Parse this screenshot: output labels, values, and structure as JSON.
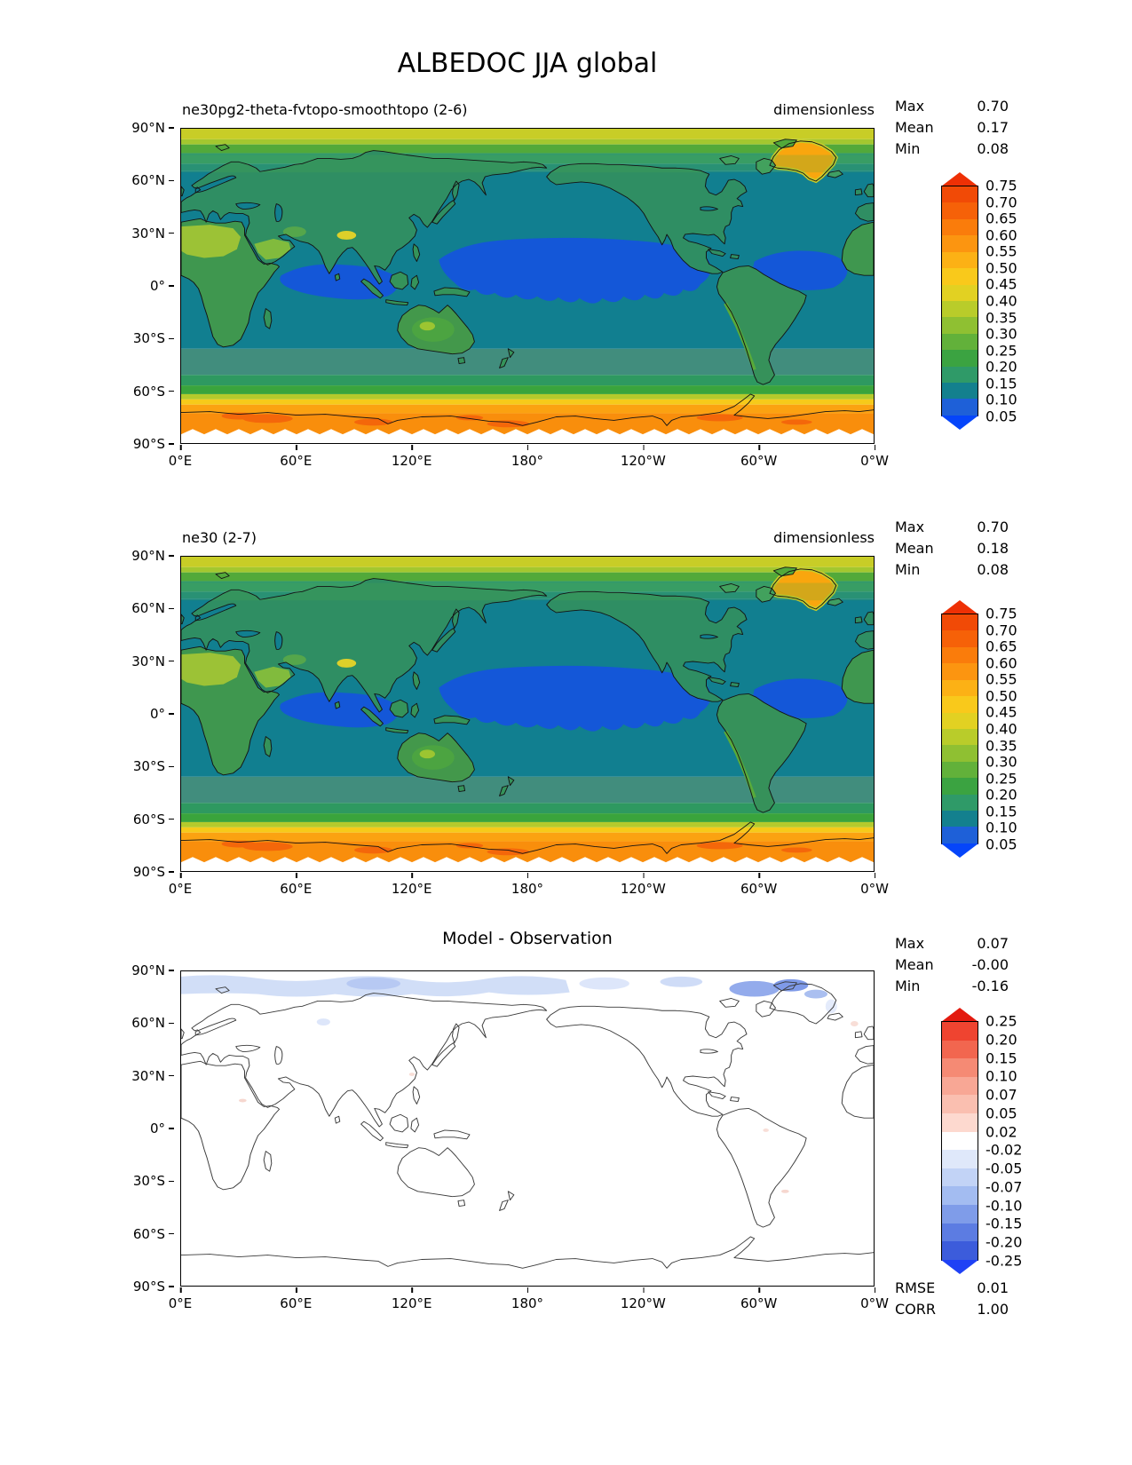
{
  "figure_title": "ALBEDOC JJA global",
  "axes": {
    "xticks": [
      "0°E",
      "60°E",
      "120°E",
      "180°",
      "120°W",
      "60°W",
      "0°W"
    ],
    "yticks": [
      "90°N",
      "60°N",
      "30°N",
      "0°",
      "30°S",
      "60°S",
      "90°S"
    ]
  },
  "panels": [
    {
      "title": "ne30pg2-theta-fvtopo-smoothtopo (2-6)",
      "units": "dimensionless",
      "stats": {
        "max_label": "Max",
        "max": "0.70",
        "mean_label": "Mean",
        "mean": "0.17",
        "min_label": "Min",
        "min": "0.08"
      }
    },
    {
      "title": "ne30 (2-7)",
      "units": "dimensionless",
      "stats": {
        "max_label": "Max",
        "max": "0.70",
        "mean_label": "Mean",
        "mean": "0.18",
        "min_label": "Min",
        "min": "0.08"
      }
    },
    {
      "title": "Model - Observation",
      "stats": {
        "max_label": "Max",
        "max": "0.07",
        "mean_label": "Mean",
        "mean": "-0.00",
        "min_label": "Min",
        "min": "-0.16"
      },
      "metrics": {
        "rmse_label": "RMSE",
        "rmse": "0.01",
        "corr_label": "CORR",
        "corr": "1.00"
      }
    }
  ],
  "colorbars": {
    "albedo": {
      "ticks": [
        "0.75",
        "0.70",
        "0.65",
        "0.60",
        "0.55",
        "0.50",
        "0.45",
        "0.40",
        "0.35",
        "0.30",
        "0.25",
        "0.20",
        "0.15",
        "0.10",
        "0.05"
      ],
      "arrow_top": "#ee3005",
      "arrow_bottom": "#0545fa",
      "colors": [
        "#f14a06",
        "#f66108",
        "#fa7c0b",
        "#fc9510",
        "#fcb115",
        "#f9c91b",
        "#e2d122",
        "#b9cc2a",
        "#8fc032",
        "#62b13a",
        "#3ba341",
        "#2f9a68",
        "#13808e",
        "#1e60d8"
      ]
    },
    "diff": {
      "ticks": [
        "0.25",
        "0.20",
        "0.15",
        "0.10",
        "0.07",
        "0.05",
        "0.02",
        "-0.02",
        "-0.05",
        "-0.07",
        "-0.10",
        "-0.15",
        "-0.20",
        "-0.25"
      ],
      "arrow_top": "#e31a0f",
      "arrow_bottom": "#1f41f5",
      "colors": [
        "#ef4430",
        "#f2664f",
        "#f58a74",
        "#f8a795",
        "#fabfb0",
        "#fdd9cf",
        "#ffffff",
        "#dfe8fa",
        "#c2d3f6",
        "#a3bcf1",
        "#7f9ce9",
        "#5c7ce2",
        "#3c5cdb"
      ]
    }
  },
  "chart_data": [
    {
      "type": "heatmap",
      "variable": "ALBEDOC",
      "season": "JJA",
      "region": "global",
      "title": "ne30pg2-theta-fvtopo-smoothtopo (2-6)",
      "units": "dimensionless",
      "stats": {
        "max": 0.7,
        "mean": 0.17,
        "min": 0.08
      },
      "x_ticks": [
        "0°E",
        "60°E",
        "120°E",
        "180°",
        "120°W",
        "60°W",
        "0°W"
      ],
      "y_ticks": [
        "90°N",
        "60°N",
        "30°N",
        "0°",
        "30°S",
        "60°S",
        "90°S"
      ],
      "lon_range_deg": [
        0,
        360
      ],
      "lat_range_deg": [
        90,
        -90
      ],
      "contour_levels": [
        0.05,
        0.1,
        0.15,
        0.2,
        0.25,
        0.3,
        0.35,
        0.4,
        0.45,
        0.5,
        0.55,
        0.6,
        0.65,
        0.7,
        0.75
      ],
      "pattern_summary": "High albedo 0.45-0.75 over Arctic cap (poleward of ~78°N), Greenland ice sheet, and the Southern Ocean/Antarctic sea-ice belt (55°S-83°S, orange 0.55-0.75); continents ~0.15-0.30 with Sahara/Arabia ~0.30-0.45 and Tibet ~0.40; mid-latitude oceans ~0.10-0.15 (teal); tropical oceans minimum 0.05-0.10 (blue) in equatorial Pacific, Indian and Atlantic; white (no data) poleward of ~83°S."
    },
    {
      "type": "heatmap",
      "variable": "ALBEDOC",
      "season": "JJA",
      "region": "global",
      "title": "ne30 (2-7)",
      "units": "dimensionless",
      "stats": {
        "max": 0.7,
        "mean": 0.18,
        "min": 0.08
      },
      "x_ticks": [
        "0°E",
        "60°E",
        "120°E",
        "180°",
        "120°W",
        "60°W",
        "0°W"
      ],
      "y_ticks": [
        "90°N",
        "60°N",
        "30°N",
        "0°",
        "30°S",
        "60°S",
        "90°S"
      ],
      "lon_range_deg": [
        0,
        360
      ],
      "lat_range_deg": [
        90,
        -90
      ],
      "contour_levels": [
        0.05,
        0.1,
        0.15,
        0.2,
        0.25,
        0.3,
        0.35,
        0.4,
        0.45,
        0.5,
        0.55,
        0.6,
        0.65,
        0.7,
        0.75
      ],
      "pattern_summary": "Nearly identical spatial pattern to the first panel: high albedo over polar regions and Greenland, low albedo 0.05-0.10 over tropical oceans, orange Southern Ocean sea-ice belt, white missing data near the South Pole."
    },
    {
      "type": "heatmap",
      "variable": "ALBEDOC difference",
      "title": "Model - Observation",
      "stats": {
        "max": 0.07,
        "mean": -0.0,
        "min": -0.16
      },
      "metrics": {
        "rmse": 0.01,
        "corr": 1.0
      },
      "x_ticks": [
        "0°E",
        "60°E",
        "120°E",
        "180°",
        "120°W",
        "60°W",
        "0°W"
      ],
      "y_ticks": [
        "90°N",
        "60°N",
        "30°N",
        "0°",
        "30°S",
        "60°S",
        "90°S"
      ],
      "lon_range_deg": [
        0,
        360
      ],
      "lat_range_deg": [
        90,
        -90
      ],
      "contour_levels": [
        -0.25,
        -0.2,
        -0.15,
        -0.1,
        -0.07,
        -0.05,
        -0.02,
        0.02,
        0.05,
        0.07,
        0.1,
        0.15,
        0.2,
        0.25
      ],
      "pattern_summary": "Differences within ±0.02 (white) almost everywhere; weak negative anomalies -0.02 to -0.10 along the Arctic margin ~75-88°N with strongest (-0.10 to -0.16) near the Canadian Arctic Archipelago and north Greenland; a few faint positive specks elsewhere."
    }
  ]
}
